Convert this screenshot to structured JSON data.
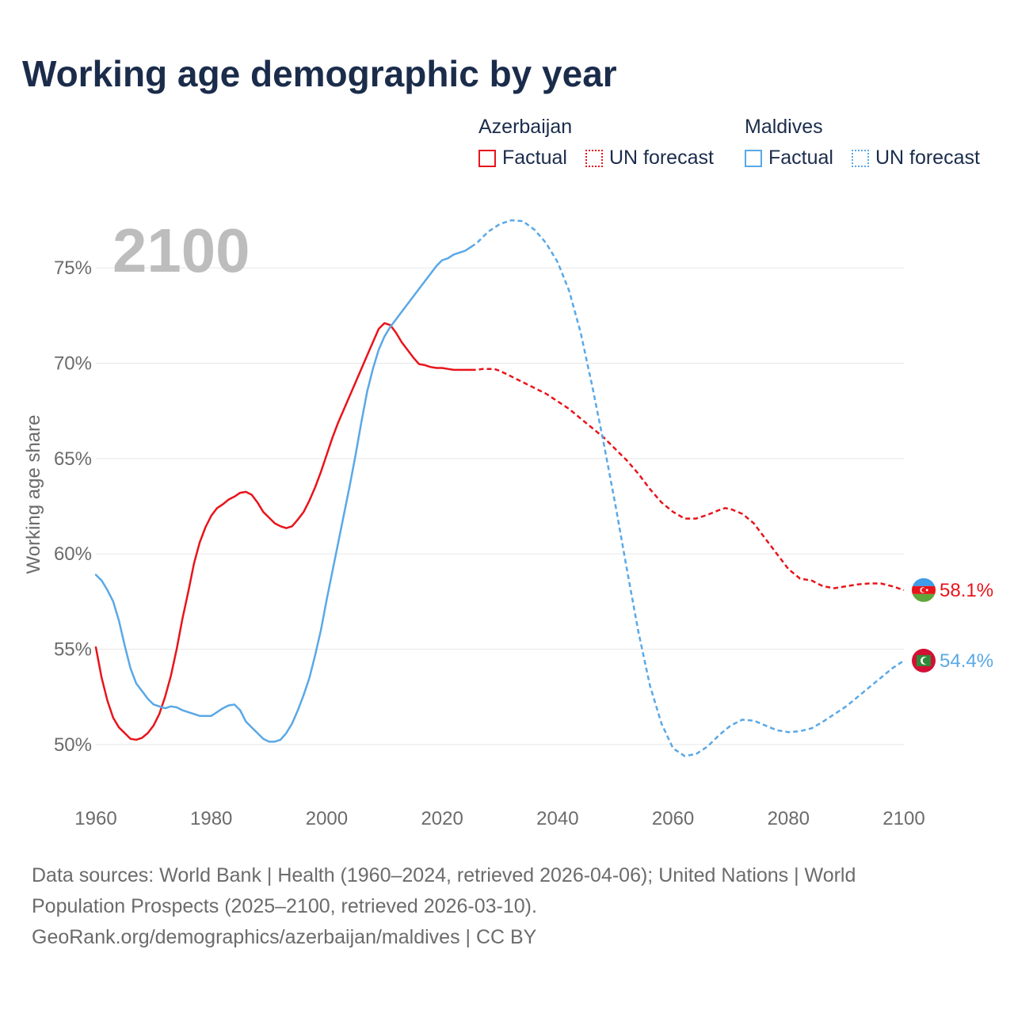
{
  "title": "Working age demographic by year",
  "legend": {
    "groups": [
      {
        "name": "Azerbaijan",
        "color": "#e8141b",
        "items": [
          "Factual",
          "UN forecast"
        ]
      },
      {
        "name": "Maldives",
        "color": "#5aa8e6",
        "items": [
          "Factual",
          "UN forecast"
        ]
      }
    ]
  },
  "year_label": "2100",
  "footer": {
    "line1": "Data sources: World Bank | Health (1960–2024, retrieved 2026-04-06); United Nations | World",
    "line2": "Population Prospects (2025–2100, retrieved 2026-03-10).",
    "line3": "GeoRank.org/demographics/azerbaijan/maldives | CC BY"
  },
  "chart_data": {
    "type": "line",
    "title": "Working age demographic by year",
    "xlabel": "",
    "ylabel": "Working age share",
    "xlim": [
      1960,
      2100
    ],
    "ylim": [
      47.5,
      77
    ],
    "x_ticks": [
      1960,
      1980,
      2000,
      2020,
      2040,
      2060,
      2080,
      2100
    ],
    "x_tick_labels": [
      "1960",
      "1980",
      "2000",
      "2020",
      "2040",
      "2060",
      "2080",
      "2100"
    ],
    "y_ticks": [
      50,
      55,
      60,
      65,
      70,
      75
    ],
    "y_tick_labels": [
      "50%",
      "55%",
      "60%",
      "65%",
      "70%",
      "75%"
    ],
    "forecast_start": 2025,
    "series": [
      {
        "name": "Azerbaijan",
        "color": "#e8141b",
        "end_label": "58.1%",
        "points": [
          [
            1960,
            55.1
          ],
          [
            1961,
            53.5
          ],
          [
            1962,
            52.3
          ],
          [
            1963,
            51.4
          ],
          [
            1964,
            50.9
          ],
          [
            1965,
            50.6
          ],
          [
            1966,
            50.3
          ],
          [
            1967,
            50.25
          ],
          [
            1968,
            50.35
          ],
          [
            1969,
            50.6
          ],
          [
            1970,
            51.0
          ],
          [
            1971,
            51.6
          ],
          [
            1972,
            52.5
          ],
          [
            1973,
            53.6
          ],
          [
            1974,
            55.0
          ],
          [
            1975,
            56.6
          ],
          [
            1976,
            58.0
          ],
          [
            1977,
            59.5
          ],
          [
            1978,
            60.6
          ],
          [
            1979,
            61.4
          ],
          [
            1980,
            62.0
          ],
          [
            1981,
            62.4
          ],
          [
            1982,
            62.6
          ],
          [
            1983,
            62.85
          ],
          [
            1984,
            63.0
          ],
          [
            1985,
            63.2
          ],
          [
            1986,
            63.25
          ],
          [
            1987,
            63.1
          ],
          [
            1988,
            62.7
          ],
          [
            1989,
            62.2
          ],
          [
            1990,
            61.9
          ],
          [
            1991,
            61.6
          ],
          [
            1992,
            61.45
          ],
          [
            1993,
            61.35
          ],
          [
            1994,
            61.45
          ],
          [
            1995,
            61.8
          ],
          [
            1996,
            62.2
          ],
          [
            1997,
            62.8
          ],
          [
            1998,
            63.5
          ],
          [
            1999,
            64.3
          ],
          [
            2000,
            65.2
          ],
          [
            2001,
            66.1
          ],
          [
            2002,
            66.9
          ],
          [
            2003,
            67.6
          ],
          [
            2004,
            68.3
          ],
          [
            2005,
            69.0
          ],
          [
            2006,
            69.7
          ],
          [
            2007,
            70.4
          ],
          [
            2008,
            71.1
          ],
          [
            2009,
            71.8
          ],
          [
            2010,
            72.1
          ],
          [
            2011,
            72.0
          ],
          [
            2012,
            71.6
          ],
          [
            2013,
            71.1
          ],
          [
            2014,
            70.7
          ],
          [
            2015,
            70.3
          ],
          [
            2016,
            69.95
          ],
          [
            2017,
            69.9
          ],
          [
            2018,
            69.8
          ],
          [
            2019,
            69.75
          ],
          [
            2020,
            69.75
          ],
          [
            2021,
            69.7
          ],
          [
            2022,
            69.65
          ],
          [
            2023,
            69.65
          ],
          [
            2024,
            69.65
          ],
          [
            2025,
            69.65
          ],
          [
            2026,
            69.65
          ],
          [
            2027,
            69.7
          ],
          [
            2028,
            69.7
          ],
          [
            2029,
            69.7
          ],
          [
            2030,
            69.6
          ],
          [
            2032,
            69.3
          ],
          [
            2034,
            69.0
          ],
          [
            2036,
            68.7
          ],
          [
            2038,
            68.4
          ],
          [
            2040,
            68.0
          ],
          [
            2042,
            67.6
          ],
          [
            2044,
            67.1
          ],
          [
            2046,
            66.6
          ],
          [
            2048,
            66.1
          ],
          [
            2050,
            65.5
          ],
          [
            2052,
            64.9
          ],
          [
            2054,
            64.2
          ],
          [
            2056,
            63.4
          ],
          [
            2058,
            62.7
          ],
          [
            2060,
            62.2
          ],
          [
            2062,
            61.85
          ],
          [
            2064,
            61.85
          ],
          [
            2066,
            62.05
          ],
          [
            2068,
            62.3
          ],
          [
            2069,
            62.4
          ],
          [
            2070,
            62.35
          ],
          [
            2072,
            62.1
          ],
          [
            2074,
            61.6
          ],
          [
            2076,
            60.8
          ],
          [
            2078,
            60.0
          ],
          [
            2080,
            59.2
          ],
          [
            2082,
            58.7
          ],
          [
            2084,
            58.6
          ],
          [
            2086,
            58.3
          ],
          [
            2088,
            58.2
          ],
          [
            2090,
            58.3
          ],
          [
            2092,
            58.4
          ],
          [
            2094,
            58.45
          ],
          [
            2096,
            58.45
          ],
          [
            2098,
            58.3
          ],
          [
            2100,
            58.1
          ]
        ]
      },
      {
        "name": "Maldives",
        "color": "#5aa8e6",
        "end_label": "54.4%",
        "points": [
          [
            1960,
            58.9
          ],
          [
            1961,
            58.6
          ],
          [
            1962,
            58.1
          ],
          [
            1963,
            57.5
          ],
          [
            1964,
            56.5
          ],
          [
            1965,
            55.2
          ],
          [
            1966,
            54.0
          ],
          [
            1967,
            53.2
          ],
          [
            1968,
            52.8
          ],
          [
            1969,
            52.4
          ],
          [
            1970,
            52.1
          ],
          [
            1971,
            52.0
          ],
          [
            1972,
            51.9
          ],
          [
            1973,
            52.0
          ],
          [
            1974,
            51.95
          ],
          [
            1975,
            51.8
          ],
          [
            1976,
            51.7
          ],
          [
            1977,
            51.6
          ],
          [
            1978,
            51.5
          ],
          [
            1979,
            51.5
          ],
          [
            1980,
            51.5
          ],
          [
            1981,
            51.7
          ],
          [
            1982,
            51.9
          ],
          [
            1983,
            52.05
          ],
          [
            1984,
            52.1
          ],
          [
            1985,
            51.8
          ],
          [
            1986,
            51.2
          ],
          [
            1987,
            50.9
          ],
          [
            1988,
            50.6
          ],
          [
            1989,
            50.3
          ],
          [
            1990,
            50.15
          ],
          [
            1991,
            50.15
          ],
          [
            1992,
            50.25
          ],
          [
            1993,
            50.6
          ],
          [
            1994,
            51.1
          ],
          [
            1995,
            51.8
          ],
          [
            1996,
            52.6
          ],
          [
            1997,
            53.5
          ],
          [
            1998,
            54.7
          ],
          [
            1999,
            56.0
          ],
          [
            2000,
            57.6
          ],
          [
            2001,
            59.1
          ],
          [
            2002,
            60.6
          ],
          [
            2003,
            62.1
          ],
          [
            2004,
            63.6
          ],
          [
            2005,
            65.2
          ],
          [
            2006,
            66.9
          ],
          [
            2007,
            68.5
          ],
          [
            2008,
            69.7
          ],
          [
            2009,
            70.7
          ],
          [
            2010,
            71.4
          ],
          [
            2011,
            71.9
          ],
          [
            2012,
            72.3
          ],
          [
            2013,
            72.7
          ],
          [
            2014,
            73.1
          ],
          [
            2015,
            73.5
          ],
          [
            2016,
            73.9
          ],
          [
            2017,
            74.3
          ],
          [
            2018,
            74.7
          ],
          [
            2019,
            75.1
          ],
          [
            2020,
            75.4
          ],
          [
            2021,
            75.5
          ],
          [
            2022,
            75.7
          ],
          [
            2023,
            75.8
          ],
          [
            2024,
            75.9
          ],
          [
            2025,
            76.1
          ],
          [
            2026,
            76.3
          ],
          [
            2027,
            76.6
          ],
          [
            2028,
            76.9
          ],
          [
            2029,
            77.1
          ],
          [
            2030,
            77.3
          ],
          [
            2032,
            77.5
          ],
          [
            2034,
            77.45
          ],
          [
            2036,
            77.0
          ],
          [
            2038,
            76.3
          ],
          [
            2040,
            75.3
          ],
          [
            2042,
            73.8
          ],
          [
            2044,
            71.6
          ],
          [
            2046,
            68.8
          ],
          [
            2048,
            65.8
          ],
          [
            2050,
            62.6
          ],
          [
            2052,
            59.2
          ],
          [
            2054,
            55.9
          ],
          [
            2056,
            53.1
          ],
          [
            2058,
            51.1
          ],
          [
            2060,
            49.8
          ],
          [
            2062,
            49.4
          ],
          [
            2064,
            49.5
          ],
          [
            2066,
            49.9
          ],
          [
            2068,
            50.5
          ],
          [
            2070,
            51.0
          ],
          [
            2072,
            51.3
          ],
          [
            2074,
            51.25
          ],
          [
            2076,
            51.0
          ],
          [
            2078,
            50.75
          ],
          [
            2080,
            50.65
          ],
          [
            2082,
            50.7
          ],
          [
            2084,
            50.85
          ],
          [
            2086,
            51.2
          ],
          [
            2088,
            51.6
          ],
          [
            2090,
            52.0
          ],
          [
            2092,
            52.5
          ],
          [
            2094,
            53.0
          ],
          [
            2096,
            53.5
          ],
          [
            2098,
            54.0
          ],
          [
            2100,
            54.4
          ]
        ]
      }
    ]
  }
}
